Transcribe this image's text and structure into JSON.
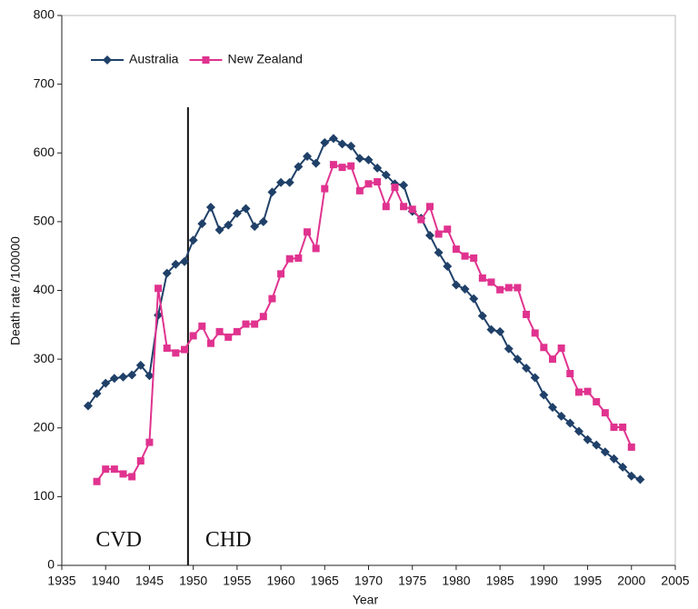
{
  "chart_data": {
    "type": "line",
    "xlabel": "Year",
    "ylabel": "Death rate /100000",
    "xlim": [
      1935,
      2005
    ],
    "xticks": [
      1935,
      1940,
      1945,
      1950,
      1955,
      1960,
      1965,
      1970,
      1975,
      1980,
      1985,
      1990,
      1995,
      2000,
      2005
    ],
    "ylim": [
      0,
      800
    ],
    "yticks": [
      0,
      100,
      200,
      300,
      400,
      500,
      600,
      700,
      800
    ],
    "grid": false,
    "legend": "top-left",
    "divider_x": 1949.4,
    "annotations": [
      {
        "text": "CVD",
        "x": 1941.5,
        "y": 35
      },
      {
        "text": "CHD",
        "x": 1954,
        "y": 35
      }
    ],
    "series": [
      {
        "name": "Australia",
        "color": "#1f4068",
        "marker": "diamond",
        "x": [
          1938,
          1939,
          1940,
          1941,
          1942,
          1943,
          1944,
          1945,
          1946,
          1947,
          1948,
          1949,
          1950,
          1951,
          1952,
          1953,
          1954,
          1955,
          1956,
          1957,
          1958,
          1959,
          1960,
          1961,
          1962,
          1963,
          1964,
          1965,
          1966,
          1967,
          1968,
          1969,
          1970,
          1971,
          1972,
          1973,
          1974,
          1975,
          1976,
          1977,
          1978,
          1979,
          1980,
          1981,
          1982,
          1983,
          1984,
          1985,
          1986,
          1987,
          1988,
          1989,
          1990,
          1991,
          1992,
          1993,
          1994,
          1995,
          1996,
          1997,
          1998,
          1999,
          2000,
          2001
        ],
        "values": [
          232,
          250,
          265,
          272,
          274,
          277,
          291,
          276,
          364,
          425,
          438,
          442,
          473,
          497,
          521,
          488,
          495,
          512,
          519,
          493,
          500,
          543,
          557,
          557,
          580,
          595,
          585,
          615,
          621,
          613,
          610,
          592,
          590,
          578,
          568,
          555,
          553,
          515,
          505,
          480,
          455,
          435,
          408,
          402,
          388,
          363,
          343,
          340,
          315,
          300,
          287,
          273,
          248,
          230,
          217,
          207,
          195,
          183,
          175,
          165,
          155,
          143,
          130,
          125
        ]
      },
      {
        "name": "New Zealand",
        "color": "#e0338f",
        "marker": "square",
        "x": [
          1939,
          1940,
          1941,
          1942,
          1943,
          1944,
          1945,
          1946,
          1947,
          1948,
          1949,
          1950,
          1951,
          1952,
          1953,
          1954,
          1955,
          1956,
          1957,
          1958,
          1959,
          1960,
          1961,
          1962,
          1963,
          1964,
          1965,
          1966,
          1967,
          1968,
          1969,
          1970,
          1971,
          1972,
          1973,
          1974,
          1975,
          1976,
          1977,
          1978,
          1979,
          1980,
          1981,
          1982,
          1983,
          1984,
          1985,
          1986,
          1987,
          1988,
          1989,
          1990,
          1991,
          1992,
          1993,
          1994,
          1995,
          1996,
          1997,
          1998,
          1999,
          2000
        ],
        "values": [
          122,
          140,
          140,
          133,
          129,
          152,
          179,
          403,
          316,
          309,
          314,
          334,
          348,
          323,
          340,
          332,
          340,
          351,
          351,
          362,
          388,
          424,
          446,
          447,
          485,
          461,
          548,
          583,
          579,
          581,
          545,
          555,
          558,
          522,
          550,
          522,
          518,
          503,
          522,
          482,
          489,
          460,
          450,
          447,
          418,
          412,
          401,
          404,
          404,
          365,
          338,
          317,
          300,
          316,
          279,
          252,
          253,
          238,
          222,
          201,
          201,
          172
        ]
      }
    ]
  }
}
